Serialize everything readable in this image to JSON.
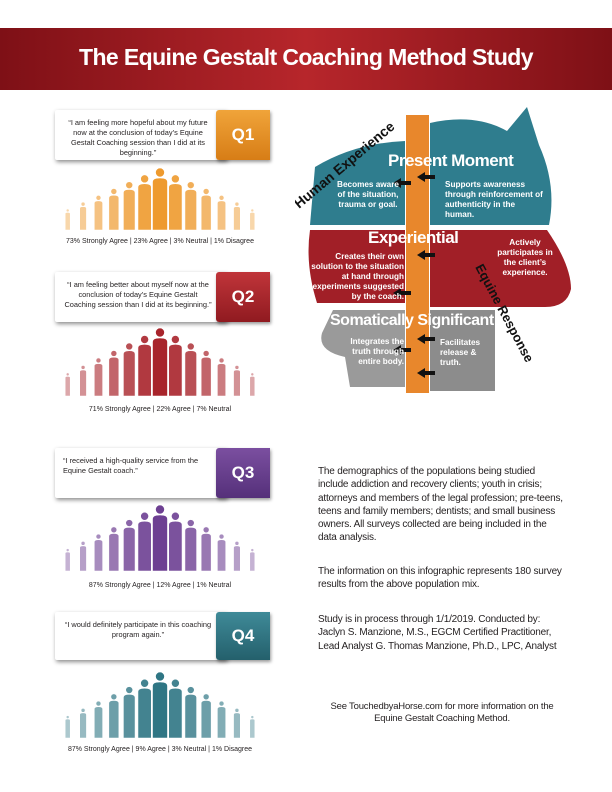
{
  "title": "The Equine Gestalt Coaching Method Study",
  "questions": [
    {
      "label": "Q1",
      "quote": "“I am feeling more hopeful about my future now at the conclusion of today’s Equine Gestalt Coaching session than I did at its beginning.”",
      "results": "73% Strongly Agree | 23% Agree | 3% Neutral | 1% Disagree"
    },
    {
      "label": "Q2",
      "quote": "“I am feeling better about myself now at the conclusion of today’s Equine Gestalt Coaching session than I did at its beginning.”",
      "results": "71% Strongly Agree | 22% Agree | 7% Neutral"
    },
    {
      "label": "Q3",
      "quote": "“I received a high-quality service from the Equine Gestalt coach.”",
      "results": "87% Strongly Agree | 12% Agree | 1% Neutral"
    },
    {
      "label": "Q4",
      "quote": "“I would definitely participate in this coaching program again.”",
      "results": "87% Strongly Agree | 9% Agree | 3% Neutral | 1% Disagree"
    }
  ],
  "diagram": {
    "human_label": "Human Experience",
    "equine_label": "Equine Response",
    "sections": [
      {
        "heading": "Present Moment",
        "human": "Becomes aware of the situation, trauma or goal.",
        "equine": "Supports awareness through reinforcement of authenticity in the human."
      },
      {
        "heading": "Experiential",
        "human": "Creates their own solution to the situation at hand through experiments suggested by the coach.",
        "equine": "Actively participates in the client’s experience."
      },
      {
        "heading": "Somatically Significant",
        "human": "Integrates the truth through entire body.",
        "equine": "Facilitates release & truth."
      }
    ]
  },
  "paragraphs": [
    "The demographics of the populations being studied include addiction and recovery clients; youth in crisis; attorneys and members of the legal profession; pre-teens, teens and family members; dentists; and small business owners. All surveys collected are being included in the data analysis.",
    "The information on this infographic represents 180 survey results from the above population mix.",
    "Study is in process through 1/1/2019. Conducted by: Jaclyn S. Manzione, M.S., EGCM Certified Practitioner, Lead Analyst  G. Thomas Manzione, Ph.D., LPC, Analyst",
    "See TouchedbyaHorse.com for more information on the Equine Gestalt Coaching Method."
  ]
}
